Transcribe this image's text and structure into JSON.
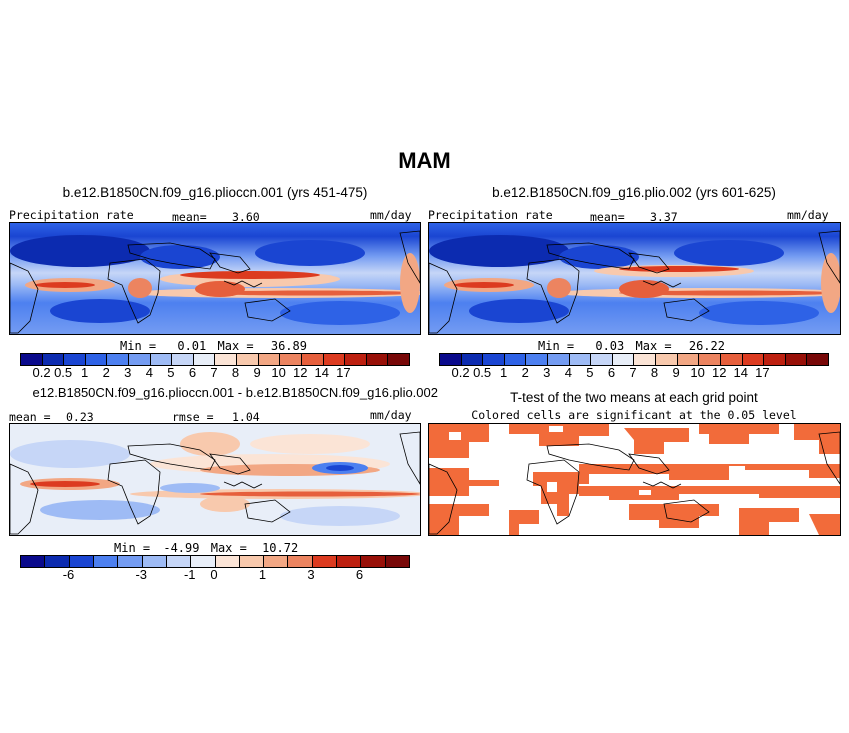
{
  "title": "MAM",
  "panels": {
    "p1": {
      "title": "b.e12.B1850CN.f09_g16.plioccn.001 (yrs 451-475)",
      "left_label": "Precipitation rate",
      "mean_label": "mean=",
      "mean_value": "3.60",
      "units": "mm/day",
      "min_label": "Min =",
      "min_value": "0.01",
      "max_label": "Max =",
      "max_value": "36.89"
    },
    "p2": {
      "title": "b.e12.B1850CN.f09_g16.plio.002 (yrs 601-625)",
      "left_label": "Precipitation rate",
      "mean_label": "mean=",
      "mean_value": "3.37",
      "units": "mm/day",
      "min_label": "Min =",
      "min_value": "0.03",
      "max_label": "Max =",
      "max_value": "26.22"
    },
    "p3": {
      "title": "e12.B1850CN.f09_g16.plioccn.001 - b.e12.B1850CN.f09_g16.plio.002",
      "mean_label": "mean =",
      "mean_value": "0.23",
      "rmse_label": "rmse =",
      "rmse_value": "1.04",
      "units": "mm/day",
      "min_label": "Min =",
      "min_value": "-4.99",
      "max_label": "Max =",
      "max_value": "10.72"
    },
    "p4": {
      "title": "T-test of the two means at each grid point",
      "subtitle": "Colored cells are significant at the 0.05 level"
    }
  },
  "colorbars": {
    "precip": {
      "colors": [
        "#0a0a8c",
        "#0c2bb0",
        "#1a45d2",
        "#2e62e6",
        "#4d80f0",
        "#749cf2",
        "#9ebbf5",
        "#c6d6f7",
        "#e8eef8",
        "#fbe4d6",
        "#f8c9ad",
        "#f2a784",
        "#ec8460",
        "#e65f3c",
        "#dc3b20",
        "#bd2010",
        "#981008",
        "#780808"
      ],
      "ticks": [
        "0.2",
        "0.5",
        "1",
        "2",
        "3",
        "4",
        "5",
        "6",
        "7",
        "8",
        "9",
        "10",
        "12",
        "14",
        "17"
      ]
    },
    "diff": {
      "colors": [
        "#0a0a8c",
        "#0c2bb0",
        "#1a45d2",
        "#4d80f0",
        "#749cf2",
        "#9ebbf5",
        "#c6d6f7",
        "#e8eef8",
        "#fbe4d6",
        "#f8c9ad",
        "#f2a784",
        "#ec8460",
        "#dc3b20",
        "#bd2010",
        "#981008",
        "#780808"
      ],
      "ticks": [
        "-6",
        "-3",
        "-1",
        "0",
        "1",
        "3",
        "6"
      ]
    }
  }
}
